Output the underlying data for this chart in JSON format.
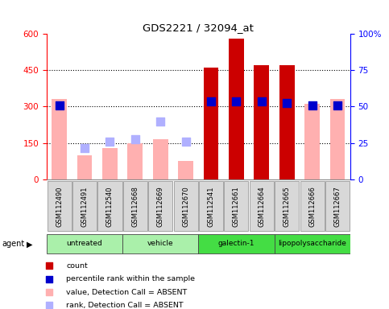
{
  "title": "GDS2221 / 32094_at",
  "samples": [
    "GSM112490",
    "GSM112491",
    "GSM112540",
    "GSM112668",
    "GSM112669",
    "GSM112670",
    "GSM112541",
    "GSM112661",
    "GSM112664",
    "GSM112665",
    "GSM112666",
    "GSM112667"
  ],
  "groups_info": [
    {
      "label": "untreated",
      "start": 0,
      "end": 2,
      "color": "#aaf0aa"
    },
    {
      "label": "vehicle",
      "start": 3,
      "end": 5,
      "color": "#aaf0aa"
    },
    {
      "label": "galectin-1",
      "start": 6,
      "end": 8,
      "color": "#44dd44"
    },
    {
      "label": "lipopolysaccharide",
      "start": 9,
      "end": 11,
      "color": "#44dd44"
    }
  ],
  "absent_value_bars": [
    330,
    100,
    130,
    150,
    165,
    75,
    null,
    null,
    null,
    null,
    310,
    330
  ],
  "absent_rank_dots": [
    null,
    130,
    155,
    165,
    240,
    155,
    null,
    null,
    null,
    null,
    null,
    null
  ],
  "present_count_bars": [
    null,
    null,
    null,
    null,
    null,
    null,
    460,
    580,
    470,
    470,
    null,
    null
  ],
  "present_rank_dots": [
    305,
    null,
    null,
    null,
    null,
    null,
    320,
    320,
    320,
    315,
    305,
    305
  ],
  "absent_value_color": "#ffb0b0",
  "absent_rank_color": "#b0b0ff",
  "present_count_color": "#cc0000",
  "present_rank_color": "#0000cc",
  "ylim_left": [
    0,
    600
  ],
  "ylim_right": [
    0,
    100
  ],
  "yticks_left": [
    0,
    150,
    300,
    450,
    600
  ],
  "ytick_labels_left": [
    "0",
    "150",
    "300",
    "450",
    "600"
  ],
  "yticks_right": [
    0,
    25,
    50,
    75,
    100
  ],
  "ytick_labels_right": [
    "0",
    "25",
    "50",
    "75",
    "100%"
  ],
  "hgrid_vals": [
    150,
    300,
    450
  ],
  "bar_width": 0.6,
  "dot_size": 45,
  "background_color": "#ffffff",
  "legend_items": [
    {
      "color": "#cc0000",
      "label": "count"
    },
    {
      "color": "#0000cc",
      "label": "percentile rank within the sample"
    },
    {
      "color": "#ffb0b0",
      "label": "value, Detection Call = ABSENT"
    },
    {
      "color": "#b0b0ff",
      "label": "rank, Detection Call = ABSENT"
    }
  ]
}
